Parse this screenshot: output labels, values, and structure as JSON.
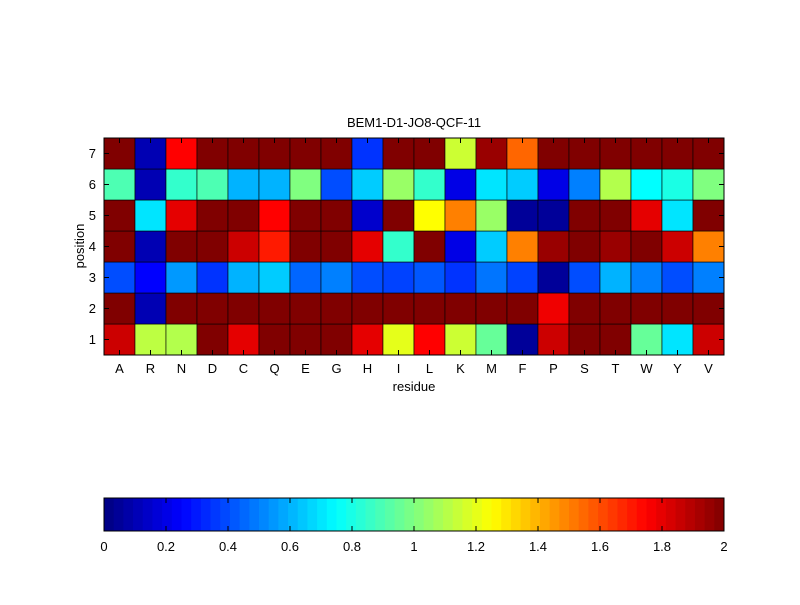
{
  "chart_data": {
    "type": "heatmap",
    "title": "BEM1-D1-JO8-QCF-11",
    "xlabel": "residue",
    "ylabel": "position",
    "x": [
      "A",
      "R",
      "N",
      "D",
      "C",
      "Q",
      "E",
      "G",
      "H",
      "I",
      "L",
      "K",
      "M",
      "F",
      "P",
      "S",
      "T",
      "W",
      "Y",
      "V"
    ],
    "y": [
      "1",
      "2",
      "3",
      "4",
      "5",
      "6",
      "7"
    ],
    "values": [
      [
        1.85,
        1.12,
        1.1,
        2.0,
        1.8,
        2.0,
        2.0,
        2.0,
        1.8,
        1.2,
        1.75,
        1.15,
        0.95,
        0.05,
        1.85,
        2.0,
        2.0,
        0.95,
        0.7,
        1.85
      ],
      [
        2.0,
        0.1,
        2.0,
        2.0,
        2.0,
        2.0,
        2.0,
        2.0,
        2.0,
        2.0,
        2.0,
        2.0,
        2.0,
        2.0,
        1.78,
        2.0,
        2.0,
        2.0,
        2.0,
        2.0
      ],
      [
        0.4,
        0.25,
        0.55,
        0.35,
        0.6,
        0.65,
        0.45,
        0.5,
        0.4,
        0.38,
        0.42,
        0.35,
        0.48,
        0.38,
        0.05,
        0.4,
        0.6,
        0.5,
        0.4,
        0.5
      ],
      [
        2.0,
        0.1,
        2.0,
        2.0,
        1.85,
        1.7,
        2.0,
        2.0,
        1.8,
        0.85,
        2.0,
        0.2,
        0.65,
        1.5,
        1.95,
        2.0,
        1.95,
        2.0,
        1.85,
        1.5
      ],
      [
        2.0,
        0.7,
        1.8,
        2.0,
        2.0,
        1.75,
        2.0,
        2.0,
        0.15,
        2.0,
        1.25,
        1.5,
        1.05,
        0.05,
        0.05,
        2.0,
        2.0,
        1.8,
        0.7,
        2.0
      ],
      [
        0.9,
        0.1,
        0.85,
        0.9,
        0.6,
        0.6,
        1.0,
        0.4,
        0.65,
        1.05,
        0.85,
        0.2,
        0.7,
        0.65,
        0.2,
        0.5,
        1.1,
        0.75,
        0.8,
        1.0
      ],
      [
        2.0,
        0.1,
        1.75,
        2.0,
        2.0,
        2.0,
        2.0,
        2.0,
        0.35,
        2.0,
        2.0,
        1.15,
        1.95,
        1.55,
        2.0,
        2.0,
        2.0,
        2.0,
        2.0,
        2.0
      ]
    ],
    "clim": [
      0,
      2
    ],
    "colormap": "jet",
    "colorbar": {
      "placement": "bottom",
      "ticks": [
        0,
        0.2,
        0.4,
        0.6,
        0.8,
        1,
        1.2,
        1.4,
        1.6,
        1.8,
        2
      ],
      "tick_labels": [
        "0",
        "0.2",
        "0.4",
        "0.6",
        "0.8",
        "1",
        "1.2",
        "1.4",
        "1.6",
        "1.8",
        "2"
      ]
    }
  }
}
